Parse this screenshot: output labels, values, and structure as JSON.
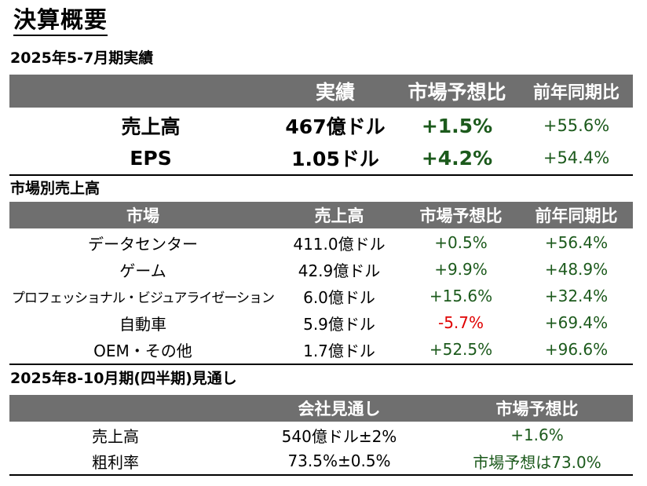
{
  "title": "決算概要",
  "summary": {
    "heading": "2025年5-7月期実績",
    "header": [
      "実績",
      "市場予想比",
      "前年同期比"
    ],
    "rows": [
      {
        "label": "売上高",
        "actual": "467億ドル",
        "vs_estimate": "+1.5%",
        "yoy": "+55.6%"
      },
      {
        "label": "EPS",
        "actual": "1.05ドル",
        "vs_estimate": "+4.2%",
        "yoy": "+54.4%"
      }
    ]
  },
  "segments": {
    "heading": "市場別売上高",
    "header": [
      "市場",
      "売上高",
      "市場予想比",
      "前年同期比"
    ],
    "rows": [
      {
        "market": "データセンター",
        "revenue": "411.0億ドル",
        "vs_estimate": "+0.5%",
        "yoy": "+56.4%"
      },
      {
        "market": "ゲーム",
        "revenue": "42.9億ドル",
        "vs_estimate": "+9.9%",
        "yoy": "+48.9%"
      },
      {
        "market": "プロフェッショナル・ビジュアライゼーション",
        "revenue": "6.0億ドル",
        "vs_estimate": "+15.6%",
        "yoy": "+32.4%"
      },
      {
        "market": "自動車",
        "revenue": "5.9億ドル",
        "vs_estimate": "-5.7%",
        "yoy": "+69.4%"
      },
      {
        "market": "OEM・その他",
        "revenue": "1.7億ドル",
        "vs_estimate": "+52.5%",
        "yoy": "+96.6%"
      }
    ]
  },
  "outlook": {
    "heading": "2025年8-10月期(四半期)見通し",
    "header": [
      "会社見通し",
      "市場予想比"
    ],
    "rows": [
      {
        "label": "売上高",
        "guidance": "540億ドル±2%",
        "vs_estimate": "+1.6%"
      },
      {
        "label": "粗利率",
        "guidance": "73.5%±0.5%",
        "vs_estimate": "市場予想は73.0%"
      }
    ]
  },
  "colors": {
    "header_bg": "#6f6f6f",
    "positive": "#1c5a1c",
    "negative": "#e00000"
  }
}
